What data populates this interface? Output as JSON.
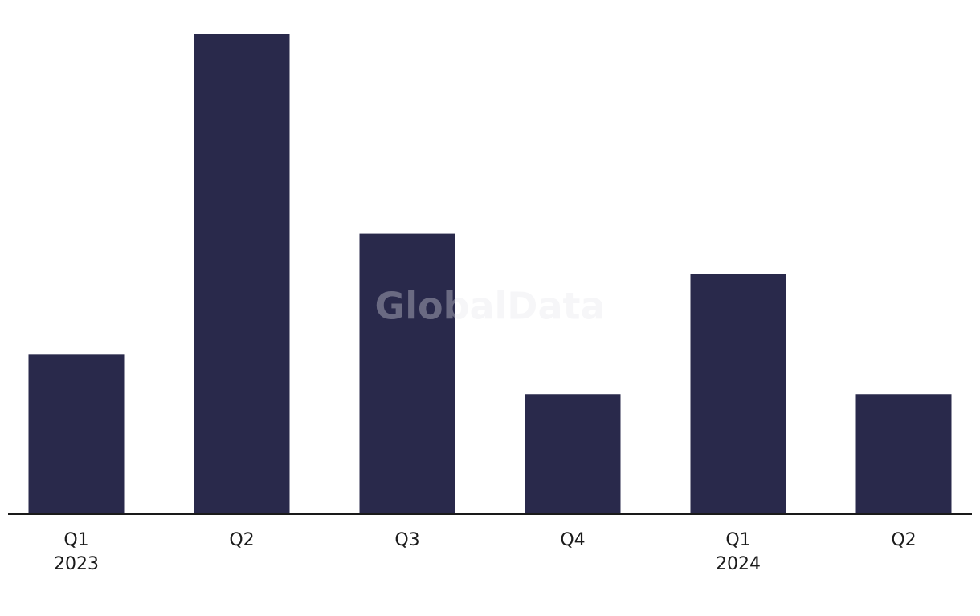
{
  "chart_data": {
    "type": "bar",
    "watermark": "GlobalData",
    "categories": [
      "Q1",
      "Q2",
      "Q3",
      "Q4",
      "Q1",
      "Q2"
    ],
    "years": [
      "2023",
      null,
      null,
      null,
      "2024",
      null
    ],
    "values": [
      4,
      12,
      7,
      3,
      6,
      3
    ],
    "color": "#29294b",
    "ylim": [
      0,
      12
    ]
  }
}
